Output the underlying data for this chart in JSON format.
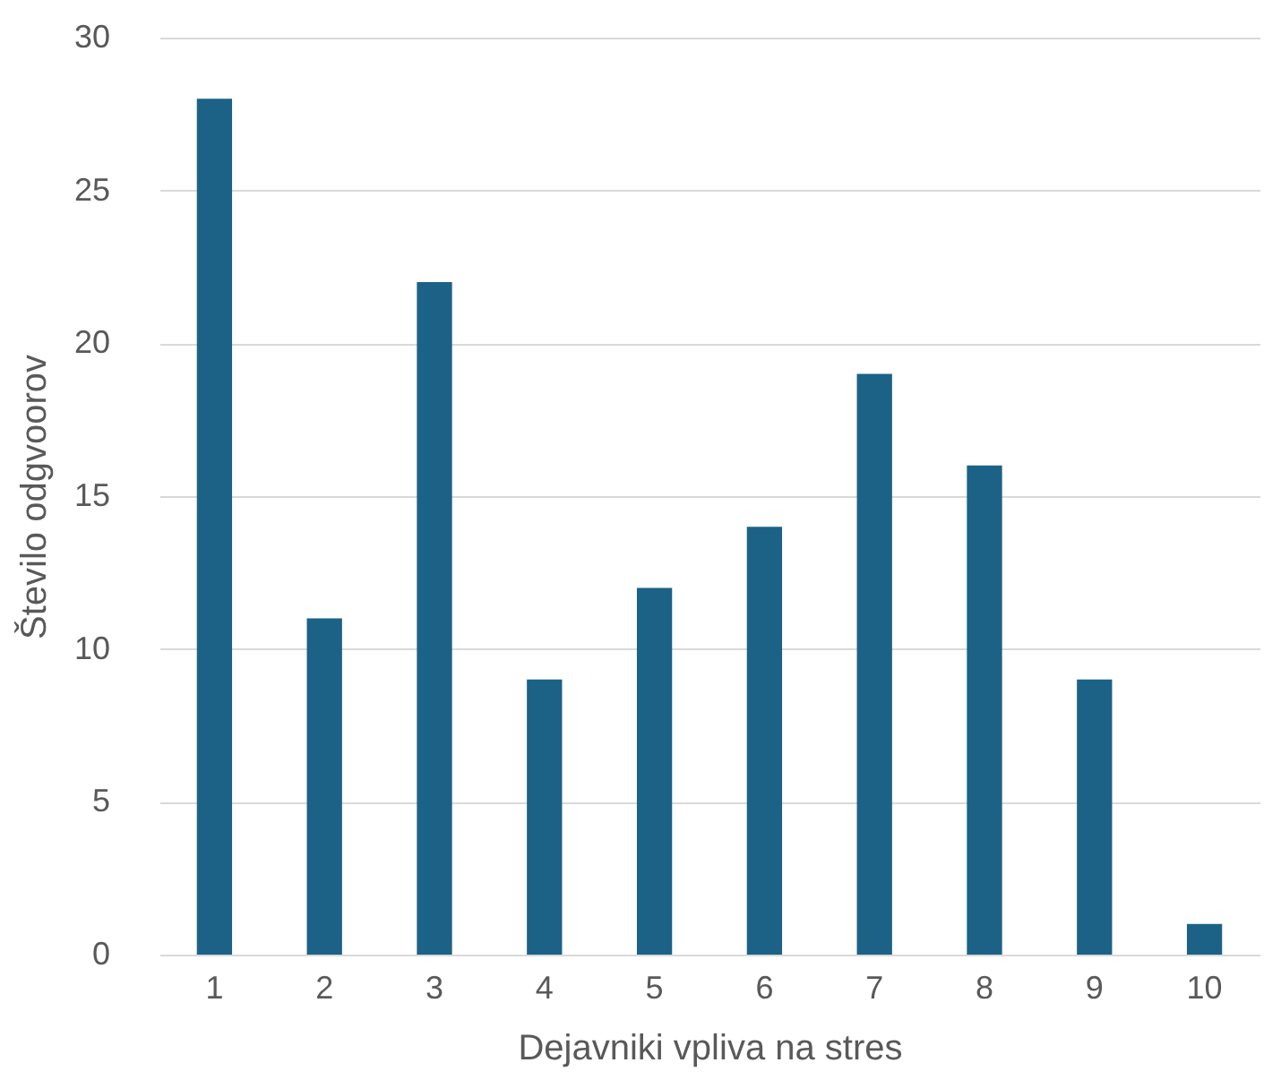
{
  "chart_data": {
    "type": "bar",
    "xlabel": "Dejavniki vpliva na stres",
    "ylabel": "Število odgvoorov",
    "categories": [
      "1",
      "2",
      "3",
      "4",
      "5",
      "6",
      "7",
      "8",
      "9",
      "10"
    ],
    "values": [
      28,
      11,
      22,
      9,
      12,
      14,
      19,
      16,
      9,
      1
    ],
    "color": "#1b6286",
    "ylim": [
      0,
      30
    ],
    "yticks": [
      0,
      5,
      10,
      15,
      20,
      25,
      30
    ],
    "grid": "y"
  }
}
